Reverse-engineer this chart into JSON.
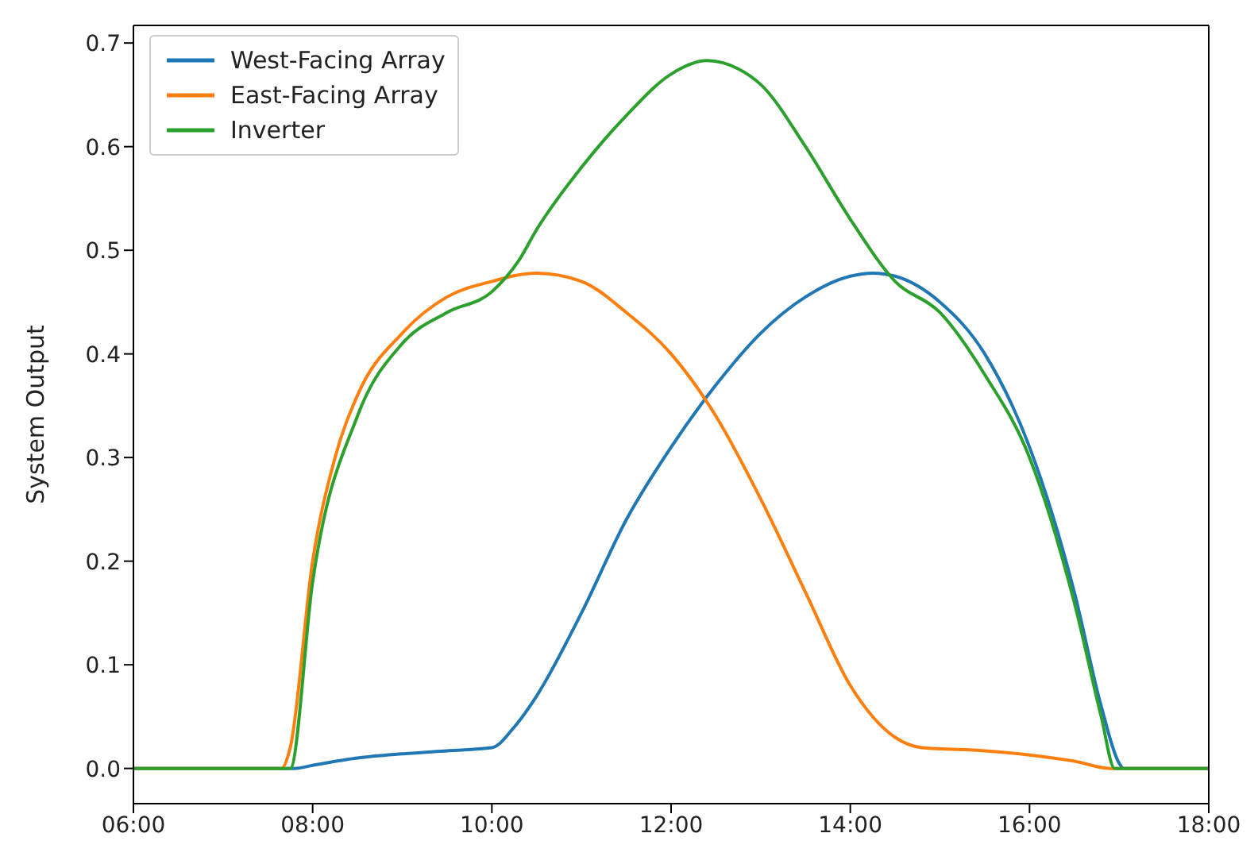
{
  "chart_data": {
    "type": "line",
    "ylabel": "System Output",
    "xlim": [
      6,
      18
    ],
    "xticks": [
      {
        "value": 6,
        "label": "06:00"
      },
      {
        "value": 8,
        "label": "08:00"
      },
      {
        "value": 10,
        "label": "10:00"
      },
      {
        "value": 12,
        "label": "12:00"
      },
      {
        "value": 14,
        "label": "14:00"
      },
      {
        "value": 16,
        "label": "16:00"
      },
      {
        "value": 18,
        "label": "18:00"
      }
    ],
    "ylim": [
      -0.034,
      0.717
    ],
    "yticks": [
      {
        "value": 0,
        "label": "0.0"
      },
      0.1,
      0.2,
      0.3,
      0.4,
      0.5,
      0.6,
      0.7
    ],
    "legend": "top left",
    "grid": false,
    "line_style": "solid",
    "series": [
      {
        "name": "West-Facing Array",
        "color": "#1f77b4",
        "x": [
          6,
          7.8,
          8.0,
          8.5,
          9.0,
          9.5,
          10.0,
          10.25,
          10.5,
          11.0,
          11.5,
          12.0,
          12.5,
          13.0,
          13.5,
          14.0,
          14.25,
          14.5,
          15.0,
          15.5,
          16.0,
          16.5,
          16.8,
          17.0,
          17.05,
          18
        ],
        "values": [
          0,
          0,
          0.003,
          0.01,
          0.014,
          0.017,
          0.02,
          0.04,
          0.07,
          0.15,
          0.24,
          0.31,
          0.37,
          0.42,
          0.455,
          0.475,
          0.478,
          0.475,
          0.45,
          0.4,
          0.31,
          0.17,
          0.06,
          0.005,
          0,
          0
        ]
      },
      {
        "name": "East-Facing Array",
        "color": "#ff7f0e",
        "x": [
          6,
          7.65,
          7.75,
          8.0,
          8.25,
          8.5,
          9.0,
          9.5,
          10.0,
          10.5,
          11.0,
          11.5,
          12.0,
          12.5,
          13.0,
          13.5,
          14.0,
          14.5,
          14.8,
          15.5,
          16.0,
          16.5,
          16.9,
          18
        ],
        "values": [
          0,
          0,
          0.02,
          0.2,
          0.3,
          0.36,
          0.42,
          0.455,
          0.47,
          0.478,
          0.47,
          0.44,
          0.4,
          0.34,
          0.26,
          0.17,
          0.08,
          0.03,
          0.02,
          0.017,
          0.013,
          0.007,
          0,
          0
        ]
      },
      {
        "name": "Inverter",
        "color": "#2ca02c",
        "x": [
          6,
          7.75,
          8.0,
          8.5,
          9.0,
          9.5,
          10.0,
          10.3,
          10.5,
          11.0,
          11.5,
          12.0,
          12.4,
          12.75,
          13.0,
          13.5,
          14.0,
          14.5,
          15.0,
          15.5,
          16.0,
          16.5,
          16.8,
          16.95,
          18
        ],
        "values": [
          0,
          0,
          0.18,
          0.34,
          0.41,
          0.44,
          0.46,
          0.49,
          0.52,
          0.58,
          0.63,
          0.67,
          0.683,
          0.675,
          0.66,
          0.6,
          0.53,
          0.47,
          0.44,
          0.38,
          0.3,
          0.16,
          0.05,
          0,
          0
        ]
      }
    ]
  }
}
